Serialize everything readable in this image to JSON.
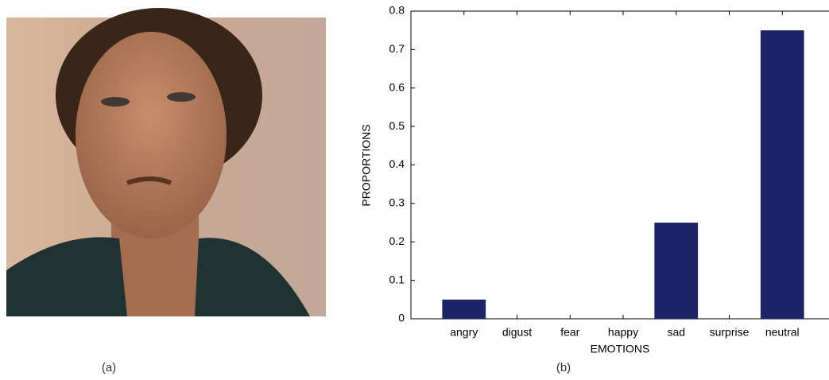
{
  "captions": [
    "(a)",
    "(b)"
  ],
  "chart_data": {
    "type": "bar",
    "categories": [
      "angry",
      "digust",
      "fear",
      "happy",
      "sad",
      "surprise",
      "neutral"
    ],
    "values": [
      0.05,
      0,
      0,
      0,
      0.25,
      0,
      0.75
    ],
    "color": "#1c2366",
    "xlabel": "EMOTIONS",
    "ylabel": "PROPORTIONS",
    "ylim": [
      0,
      0.8
    ],
    "yticks": [
      0,
      0.1,
      0.2,
      0.3,
      0.4,
      0.5,
      0.6,
      0.7,
      0.8
    ]
  }
}
